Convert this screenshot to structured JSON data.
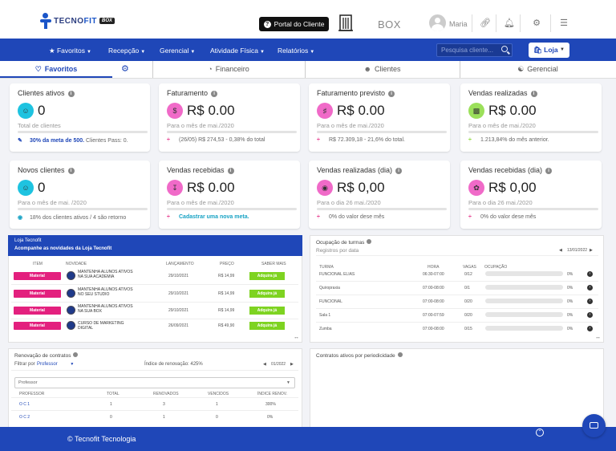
{
  "header": {
    "logo_text_a": "TECNO",
    "logo_text_b": "FIT",
    "logo_badge": "BOX",
    "portal_label": "Portal do Cliente",
    "box_name": "BOX",
    "user_name": "Maria"
  },
  "nav": {
    "items": [
      "Favoritos",
      "Recepção",
      "Gerencial",
      "Atividade Física",
      "Relatórios"
    ],
    "search_placeholder": "Pesquisa cliente...",
    "loja_label": "Loja"
  },
  "tabs": [
    "Favoritos",
    "Financeiro",
    "Clientes",
    "Gerencial"
  ],
  "cards": [
    {
      "title": "Clientes ativos",
      "value": "0",
      "sub": "Total de clientes",
      "foot_bold": "30% da meta de 500.",
      "foot": " Clientes Pass: 0.",
      "icon": "users-icon",
      "color": "#1ec3e0"
    },
    {
      "title": "Faturamento",
      "value": "R$ 0.00",
      "sub": "Para o mês de mai./2020",
      "foot_bold": "",
      "foot": "(26/05) R$ 274,53 - 0,38% do total",
      "icon": "dollar-icon",
      "color": "#f06ac8"
    },
    {
      "title": "Faturamento previsto",
      "value": "R$ 0.00",
      "sub": "Para o mês de mai./2020",
      "foot_bold": "",
      "foot": "R$ 72.309,18 - 21,6% do total.",
      "icon": "money-bag-icon",
      "color": "#f06ac8"
    },
    {
      "title": "Vendas realizadas",
      "value": "R$ 0.00",
      "sub": "Para o mês de mai./2020",
      "foot_bold": "",
      "foot": "1.213,84% do mês anterior.",
      "icon": "cash-icon",
      "color": "#9be05a"
    },
    {
      "title": "Novos clientes",
      "value": "0",
      "sub": "Para o mês de mai. /2020",
      "foot_bold": "",
      "foot": "18% dos clientes ativos / 4 são retorno",
      "icon": "user-plus-icon",
      "color": "#1ec3e0"
    },
    {
      "title": "Vendas recebidas",
      "value": "R$ 0.00",
      "sub": "Para o mês de mai./2020",
      "foot_bold": "",
      "foot_link": "Cadastrar uma nova meta.",
      "foot": "",
      "icon": "receive-icon",
      "color": "#f06ac8"
    },
    {
      "title": "Vendas realizadas (dia)",
      "value": "R$ 0,00",
      "sub": "Para o dia 26 mai./2020",
      "foot_bold": "",
      "foot": "0% do valor dese mês",
      "icon": "tag-icon",
      "color": "#f06ac8"
    },
    {
      "title": "Vendas recebidas (dia)",
      "value": "R$ 0,00",
      "sub": "Para o dia 26 mai./2020",
      "foot_bold": "",
      "foot": "0% do valor dese mês",
      "icon": "hand-money-icon",
      "color": "#f06ac8"
    }
  ],
  "loja_panel": {
    "title": "Loja Tecnofit",
    "subtitle": "Acompanhe as novidades da Loja Tecnofit",
    "headers": [
      "ITEM",
      "NOVIDADE",
      "LANÇAMENTO",
      "PREÇO",
      "SABER MAIS"
    ],
    "rows": [
      {
        "item": "Material",
        "desc": "MANTENHA ALUNOS ATIVOS NA SUA ACADEMIA",
        "date": "29/10/2021",
        "price": "R$ 14,99",
        "cta": "Adquira já"
      },
      {
        "item": "Material",
        "desc": "MANTENHA ALUNOS ATIVOS NO SEU STUDIO",
        "date": "29/10/2021",
        "price": "R$ 14,99",
        "cta": "Adquira já"
      },
      {
        "item": "Material",
        "desc": "MANTENHA ALUNOS ATIVOS NA SUA BOX",
        "date": "29/10/2021",
        "price": "R$ 14,99",
        "cta": "Adquira já"
      },
      {
        "item": "Material",
        "desc": "CURSO DE MARKETING DIGITAL",
        "date": "26/09/2021",
        "price": "R$ 49,90",
        "cta": "Adquira já"
      }
    ]
  },
  "turmas_panel": {
    "title": "Ocupação de turmas",
    "subtitle": "Registros por data",
    "date": "13/01/2022",
    "headers": [
      "TURMA",
      "HORA",
      "VAGAS",
      "OCUPAÇÃO"
    ],
    "rows": [
      {
        "turma": "FUNCIONAL ELIAS",
        "hora": "06:30-07:00",
        "vagas": "0/12",
        "ocup": "0%"
      },
      {
        "turma": "Quiropraxia",
        "hora": "07:00-08:00",
        "vagas": "0/1",
        "ocup": "0%"
      },
      {
        "turma": "FUNCIONAL",
        "hora": "07:00-08:00",
        "vagas": "0/20",
        "ocup": "0%"
      },
      {
        "turma": "Sala 1",
        "hora": "07:00-07:59",
        "vagas": "0/20",
        "ocup": "0%"
      },
      {
        "turma": "Zumba",
        "hora": "07:00-08:00",
        "vagas": "0/15",
        "ocup": "0%"
      }
    ]
  },
  "renovacao_panel": {
    "title": "Renovação de contratos",
    "filter_label": "Filtrar por",
    "filter_value": "Professor",
    "index_label": "Índice de renovação: 425%",
    "date": "01/2022",
    "select_value": "Professor",
    "headers": [
      "PROFESSOR",
      "TOTAL",
      "RENOVADOS",
      "VENCIDOS",
      "ÍNDICE RENOV."
    ],
    "rows": [
      {
        "prof": "O C 1",
        "total": "1",
        "renov": "3",
        "venc": "1",
        "indice": "300%"
      },
      {
        "prof": "O C 2",
        "total": "0",
        "renov": "1",
        "venc": "0",
        "indice": "0%"
      }
    ]
  },
  "contratos_panel": {
    "title": "Contratos ativos por periodicidade"
  },
  "footer": {
    "text": "© Tecnofit Tecnologia"
  },
  "colors": {
    "primary": "#1f47b8",
    "pink": "#e3207e",
    "green": "#7ed321"
  }
}
